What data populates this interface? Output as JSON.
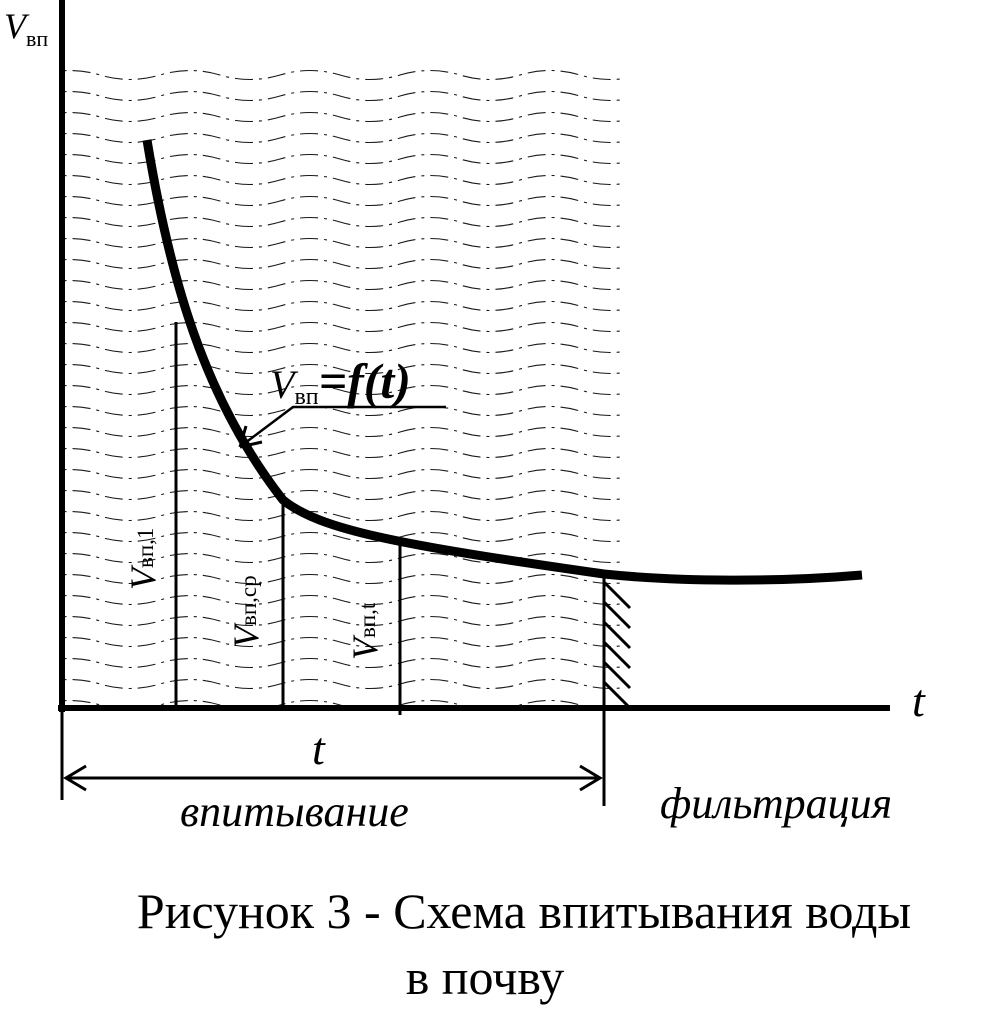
{
  "axes": {
    "y_label_main": "V",
    "y_label_sub": "вп",
    "x_label": "t"
  },
  "curve_label": {
    "v": "V",
    "sub": "вп",
    "rest": "=f(t)"
  },
  "markers": [
    {
      "v": "V",
      "sub": "вп,1"
    },
    {
      "v": "V",
      "sub": "вп,ср"
    },
    {
      "v": "V",
      "sub": "вп,t"
    }
  ],
  "interval": {
    "label": "t",
    "phase1": "впитывание",
    "phase2": "фильтрация"
  },
  "caption": {
    "line1": "Рисунок 3 -  Схема впитывания воды",
    "line2": "в почву"
  }
}
